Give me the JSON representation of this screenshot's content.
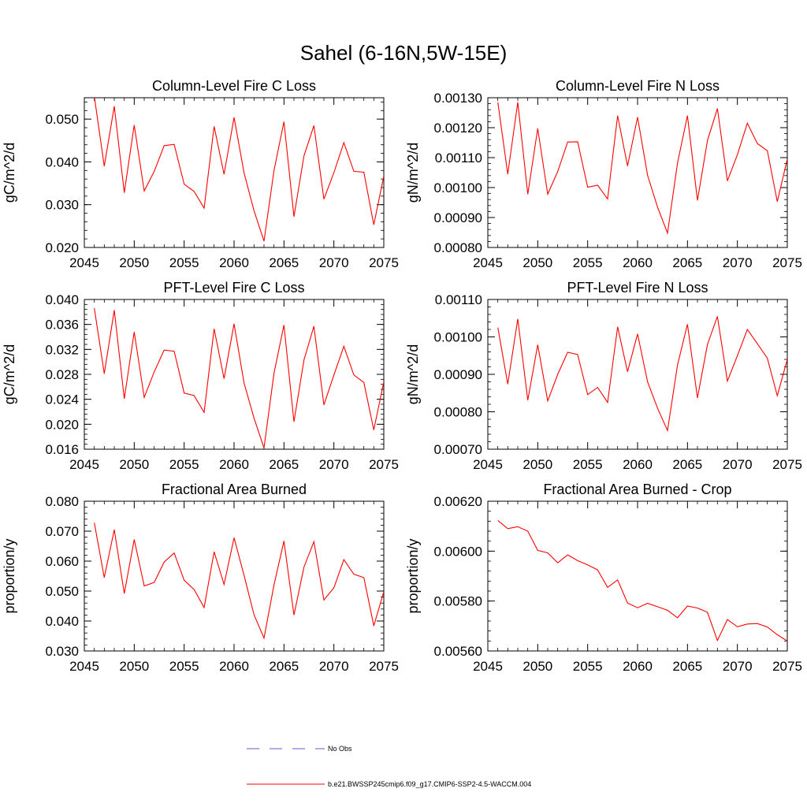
{
  "figure": {
    "title": "Sahel (6-16N,5W-15E)"
  },
  "legend": {
    "entries": [
      {
        "label": "No Obs",
        "color": "#5b5bd6",
        "dash": true
      },
      {
        "label": "b.e21.BWSSP245cmip6.f09_g17.CMIP6-SSP2-4.5-WACCM.004",
        "color": "#ff0000",
        "dash": false
      }
    ]
  },
  "colors": {
    "series": "#ff0000",
    "obs": "#5b5bd6",
    "axes": "#000000"
  },
  "chart_data": [
    {
      "type": "line",
      "title": "Column-Level Fire C Loss",
      "ylabel": "gC/m^2/d",
      "xlabel": "",
      "xlim": [
        2045,
        2075
      ],
      "ylim": [
        0.02,
        0.055
      ],
      "xticks": [
        2045,
        2050,
        2055,
        2060,
        2065,
        2070,
        2075
      ],
      "yticks": [
        0.02,
        0.03,
        0.04,
        0.05
      ],
      "ytick_labels": [
        "0.020",
        "0.030",
        "0.040",
        "0.050"
      ],
      "series": [
        {
          "x": [
            2046,
            2047,
            2048,
            2049,
            2050,
            2051,
            2052,
            2053,
            2054,
            2055,
            2056,
            2057,
            2058,
            2059,
            2060,
            2061,
            2062,
            2063,
            2064,
            2065,
            2066,
            2067,
            2068,
            2069,
            2070,
            2071,
            2072,
            2073,
            2074,
            2075
          ],
          "values": [
            0.0553,
            0.039,
            0.053,
            0.0328,
            0.0486,
            0.0332,
            0.0378,
            0.0438,
            0.0441,
            0.0348,
            0.0331,
            0.0292,
            0.0483,
            0.0371,
            0.0504,
            0.0374,
            0.0286,
            0.0215,
            0.038,
            0.0494,
            0.0272,
            0.0414,
            0.0485,
            0.0313,
            0.0375,
            0.0445,
            0.0378,
            0.0376,
            0.0253,
            0.0367
          ]
        }
      ]
    },
    {
      "type": "line",
      "title": "Column-Level Fire N Loss",
      "ylabel": "gN/m^2/d",
      "xlabel": "",
      "xlim": [
        2045,
        2075
      ],
      "ylim": [
        0.0008,
        0.0013
      ],
      "xticks": [
        2045,
        2050,
        2055,
        2060,
        2065,
        2070,
        2075
      ],
      "yticks": [
        0.0008,
        0.0009,
        0.001,
        0.0011,
        0.0012,
        0.0013
      ],
      "ytick_labels": [
        "0.00080",
        "0.00090",
        "0.00100",
        "0.00110",
        "0.00120",
        "0.00130"
      ],
      "series": [
        {
          "x": [
            2046,
            2047,
            2048,
            2049,
            2050,
            2051,
            2052,
            2053,
            2054,
            2055,
            2056,
            2057,
            2058,
            2059,
            2060,
            2061,
            2062,
            2063,
            2064,
            2065,
            2066,
            2067,
            2068,
            2069,
            2070,
            2071,
            2072,
            2073,
            2074,
            2075
          ],
          "values": [
            0.001285,
            0.001045,
            0.001285,
            0.000978,
            0.001197,
            0.000978,
            0.001054,
            0.001152,
            0.001153,
            0.001001,
            0.001008,
            0.000962,
            0.00124,
            0.001072,
            0.001235,
            0.001041,
            0.000935,
            0.000848,
            0.001082,
            0.00124,
            0.000957,
            0.001157,
            0.001264,
            0.001022,
            0.00111,
            0.001215,
            0.001147,
            0.001123,
            0.000953,
            0.001095
          ]
        }
      ]
    },
    {
      "type": "line",
      "title": "PFT-Level Fire C Loss",
      "ylabel": "gC/m^2/d",
      "xlabel": "",
      "xlim": [
        2045,
        2075
      ],
      "ylim": [
        0.016,
        0.04
      ],
      "xticks": [
        2045,
        2050,
        2055,
        2060,
        2065,
        2070,
        2075
      ],
      "yticks": [
        0.016,
        0.02,
        0.024,
        0.028,
        0.032,
        0.036,
        0.04
      ],
      "ytick_labels": [
        "0.016",
        "0.020",
        "0.024",
        "0.028",
        "0.032",
        "0.036",
        "0.040"
      ],
      "series": [
        {
          "x": [
            2046,
            2047,
            2048,
            2049,
            2050,
            2051,
            2052,
            2053,
            2054,
            2055,
            2056,
            2057,
            2058,
            2059,
            2060,
            2061,
            2062,
            2063,
            2064,
            2065,
            2066,
            2067,
            2068,
            2069,
            2070,
            2071,
            2072,
            2073,
            2074,
            2075
          ],
          "values": [
            0.0386,
            0.0281,
            0.0383,
            0.0241,
            0.0348,
            0.0243,
            0.0284,
            0.0319,
            0.0317,
            0.025,
            0.0246,
            0.0219,
            0.0353,
            0.0273,
            0.0361,
            0.0266,
            0.021,
            0.0162,
            0.0282,
            0.0359,
            0.0204,
            0.0303,
            0.0357,
            0.0231,
            0.0279,
            0.0325,
            0.0279,
            0.0267,
            0.0191,
            0.0268
          ]
        }
      ]
    },
    {
      "type": "line",
      "title": "PFT-Level Fire N Loss",
      "ylabel": "gN/m^2/d",
      "xlabel": "",
      "xlim": [
        2045,
        2075
      ],
      "ylim": [
        0.0007,
        0.0011
      ],
      "xticks": [
        2045,
        2050,
        2055,
        2060,
        2065,
        2070,
        2075
      ],
      "yticks": [
        0.0007,
        0.0008,
        0.0009,
        0.001,
        0.0011
      ],
      "ytick_labels": [
        "0.00070",
        "0.00080",
        "0.00090",
        "0.00100",
        "0.00110"
      ],
      "series": [
        {
          "x": [
            2046,
            2047,
            2048,
            2049,
            2050,
            2051,
            2052,
            2053,
            2054,
            2055,
            2056,
            2057,
            2058,
            2059,
            2060,
            2061,
            2062,
            2063,
            2064,
            2065,
            2066,
            2067,
            2068,
            2069,
            2070,
            2071,
            2072,
            2073,
            2074,
            2075
          ],
          "values": [
            0.001025,
            0.000874,
            0.001048,
            0.000831,
            0.000979,
            0.000829,
            0.0009,
            0.000959,
            0.000953,
            0.000846,
            0.000865,
            0.000825,
            0.001027,
            0.000907,
            0.001008,
            0.00088,
            0.00081,
            0.00075,
            0.000925,
            0.001034,
            0.000837,
            0.00098,
            0.001055,
            0.000882,
            0.00095,
            0.00102,
            0.000982,
            0.000943,
            0.000843,
            0.00094
          ]
        }
      ]
    },
    {
      "type": "line",
      "title": "Fractional Area Burned",
      "ylabel": "proportion/y",
      "xlabel": "",
      "xlim": [
        2045,
        2075
      ],
      "ylim": [
        0.03,
        0.08
      ],
      "xticks": [
        2045,
        2050,
        2055,
        2060,
        2065,
        2070,
        2075
      ],
      "yticks": [
        0.03,
        0.04,
        0.05,
        0.06,
        0.07,
        0.08
      ],
      "ytick_labels": [
        "0.030",
        "0.040",
        "0.050",
        "0.060",
        "0.070",
        "0.080"
      ],
      "series": [
        {
          "x": [
            2046,
            2047,
            2048,
            2049,
            2050,
            2051,
            2052,
            2053,
            2054,
            2055,
            2056,
            2057,
            2058,
            2059,
            2060,
            2061,
            2062,
            2063,
            2064,
            2065,
            2066,
            2067,
            2068,
            2069,
            2070,
            2071,
            2072,
            2073,
            2074,
            2075
          ],
          "values": [
            0.0728,
            0.0545,
            0.0705,
            0.0492,
            0.0672,
            0.0517,
            0.0529,
            0.0597,
            0.0627,
            0.0536,
            0.0505,
            0.0445,
            0.0631,
            0.0522,
            0.0678,
            0.0552,
            0.0421,
            0.0343,
            0.0521,
            0.0667,
            0.042,
            0.058,
            0.0665,
            0.047,
            0.0511,
            0.0605,
            0.0556,
            0.0545,
            0.0384,
            0.0498
          ]
        }
      ]
    },
    {
      "type": "line",
      "title": "Fractional Area Burned - Crop",
      "ylabel": "proportion/y",
      "xlabel": "",
      "xlim": [
        2045,
        2075
      ],
      "ylim": [
        0.0056,
        0.0062
      ],
      "xticks": [
        2045,
        2050,
        2055,
        2060,
        2065,
        2070,
        2075
      ],
      "yticks": [
        0.0056,
        0.0058,
        0.006,
        0.0062
      ],
      "ytick_labels": [
        "0.00560",
        "0.00580",
        "0.00600",
        "0.00620"
      ],
      "series": [
        {
          "x": [
            2046,
            2047,
            2048,
            2049,
            2050,
            2051,
            2052,
            2053,
            2054,
            2055,
            2056,
            2057,
            2058,
            2059,
            2060,
            2061,
            2062,
            2063,
            2064,
            2065,
            2066,
            2067,
            2068,
            2069,
            2070,
            2071,
            2072,
            2073,
            2074,
            2075
          ],
          "values": [
            0.006123,
            0.00609,
            0.006098,
            0.00608,
            0.006003,
            0.005993,
            0.005953,
            0.005985,
            0.005962,
            0.005945,
            0.005925,
            0.005855,
            0.005885,
            0.005792,
            0.005773,
            0.005791,
            0.005777,
            0.005763,
            0.005733,
            0.00578,
            0.005772,
            0.005755,
            0.005642,
            0.005726,
            0.005697,
            0.005708,
            0.00571,
            0.005696,
            0.005665,
            0.00564
          ]
        }
      ]
    }
  ]
}
